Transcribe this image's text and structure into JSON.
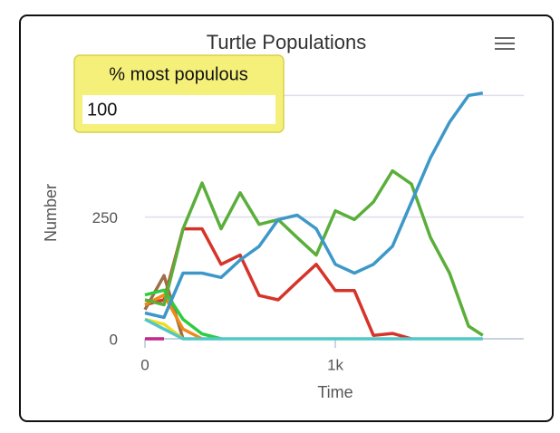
{
  "chart_data": {
    "type": "line",
    "title": "Turtle Populations",
    "x_label": "Time",
    "y_label": "Number",
    "x": [
      0,
      100,
      200,
      300,
      400,
      500,
      600,
      700,
      800,
      900,
      1000,
      1100,
      1200,
      1300,
      1400,
      1500,
      1600,
      1700,
      1775
    ],
    "xlim": [
      0,
      1990
    ],
    "xticks": [
      0,
      {
        "value": 1000,
        "label": "1k"
      }
    ],
    "ylim": [
      0,
      510
    ],
    "yticks": [
      0,
      250,
      500
    ],
    "grid": true,
    "series": [
      {
        "color": "#d6342a",
        "values": [
          70,
          80,
          226,
          226,
          153,
          172,
          89,
          80,
          117,
          153,
          99,
          99,
          7,
          11,
          0,
          null,
          null,
          null,
          null
        ]
      },
      {
        "color": "#9d6e48",
        "values": [
          60,
          130,
          0,
          null,
          null,
          null,
          null,
          null,
          null,
          null,
          null,
          null,
          null,
          null,
          null,
          null,
          null,
          null,
          null
        ]
      },
      {
        "color": "#f08a1a",
        "values": [
          70,
          90,
          20,
          0,
          null,
          null,
          null,
          null,
          null,
          null,
          null,
          null,
          null,
          null,
          null,
          null,
          null,
          null,
          null
        ]
      },
      {
        "color": "#eedd22",
        "values": [
          40,
          30,
          0,
          null,
          null,
          null,
          null,
          null,
          null,
          null,
          null,
          null,
          null,
          null,
          null,
          null,
          null,
          null,
          null
        ]
      },
      {
        "color": "#2ecc40",
        "values": [
          90,
          100,
          40,
          10,
          0,
          null,
          null,
          null,
          null,
          null,
          null,
          null,
          null,
          null,
          null,
          null,
          null,
          null,
          null
        ]
      },
      {
        "color": "#c0278a",
        "values": [
          0,
          0,
          null,
          null,
          null,
          null,
          null,
          null,
          null,
          null,
          null,
          null,
          null,
          null,
          null,
          null,
          null,
          null,
          null
        ]
      },
      {
        "color": "#52c7c7",
        "values": [
          40,
          20,
          0,
          0,
          0,
          0,
          0,
          0,
          0,
          0,
          0,
          0,
          0,
          0,
          0,
          0,
          0,
          0,
          0
        ]
      },
      {
        "color": "#5aae3a",
        "values": [
          80,
          70,
          226,
          320,
          226,
          300,
          235,
          245,
          208,
          172,
          263,
          245,
          281,
          345,
          318,
          208,
          135,
          26,
          7
        ]
      },
      {
        "color": "#3d98c9",
        "values": [
          53,
          44,
          135,
          135,
          126,
          162,
          190,
          245,
          254,
          226,
          153,
          135,
          153,
          190,
          281,
          372,
          445,
          500,
          505
        ]
      }
    ]
  },
  "monitor": {
    "label": "% most populous",
    "value": 100
  }
}
